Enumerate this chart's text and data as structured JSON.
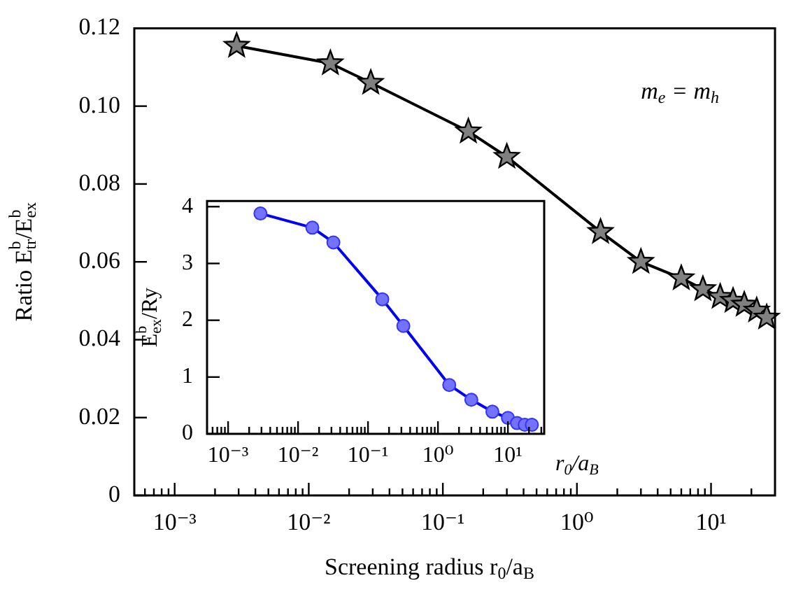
{
  "chart_data": [
    {
      "type": "line",
      "xlabel": "Screening radius r$_{0}$/a$_{B}$",
      "ylabel": "Ratio E$^{b}$$_{tr}$/E$^{b}$$_{ex}$",
      "annotations": [
        "m$_{e}$ = m$_{h}$"
      ],
      "log": "x",
      "marker": "star",
      "x": [
        0.0029,
        0.0145,
        0.029,
        0.155,
        0.3,
        1.5,
        3.0,
        6.0,
        8.7,
        11.7,
        14.6,
        17.7,
        21.9,
        26
      ],
      "series": [
        {
          "color": "#000000",
          "values": [
            0.1155,
            0.111,
            0.106,
            0.0935,
            0.087,
            0.0677,
            0.06,
            0.0558,
            0.053,
            0.051,
            0.05,
            0.049,
            0.0475,
            0.0457
          ]
        }
      ],
      "xlim": [
        0.0005,
        30
      ],
      "ylim": [
        0,
        0.12
      ],
      "xticks": [
        {
          "value": 0.0006,
          "label": null
        },
        {
          "value": 0.0007,
          "label": null
        },
        {
          "value": 0.0008,
          "label": null
        },
        {
          "value": 0.0009,
          "label": null
        },
        {
          "value": 0.001,
          "label": "10⁻³"
        },
        {
          "value": 0.002,
          "label": null
        },
        {
          "value": 0.003,
          "label": null
        },
        {
          "value": 0.004,
          "label": null
        },
        {
          "value": 0.005,
          "label": null
        },
        {
          "value": 0.006,
          "label": null
        },
        {
          "value": 0.007,
          "label": null
        },
        {
          "value": 0.008,
          "label": null
        },
        {
          "value": 0.009,
          "label": null
        },
        {
          "value": 0.01,
          "label": "10⁻²"
        },
        {
          "value": 0.02,
          "label": null
        },
        {
          "value": 0.03,
          "label": null
        },
        {
          "value": 0.04,
          "label": null
        },
        {
          "value": 0.05,
          "label": null
        },
        {
          "value": 0.06,
          "label": null
        },
        {
          "value": 0.07,
          "label": null
        },
        {
          "value": 0.08,
          "label": null
        },
        {
          "value": 0.09,
          "label": null
        },
        {
          "value": 0.1,
          "label": "10⁻¹"
        },
        {
          "value": 0.2,
          "label": null
        },
        {
          "value": 0.3,
          "label": null
        },
        {
          "value": 0.4,
          "label": null
        },
        {
          "value": 0.5,
          "label": null
        },
        {
          "value": 0.6,
          "label": null
        },
        {
          "value": 0.7,
          "label": null
        },
        {
          "value": 0.8,
          "label": null
        },
        {
          "value": 0.9,
          "label": null
        },
        {
          "value": 1,
          "label": "10⁰"
        },
        {
          "value": 2,
          "label": null
        },
        {
          "value": 3,
          "label": null
        },
        {
          "value": 4,
          "label": null
        },
        {
          "value": 5,
          "label": null
        },
        {
          "value": 6,
          "label": null
        },
        {
          "value": 7,
          "label": null
        },
        {
          "value": 8,
          "label": null
        },
        {
          "value": 9,
          "label": null
        },
        {
          "value": 10,
          "label": "10¹"
        },
        {
          "value": 20,
          "label": null
        }
      ],
      "yticks": [
        0,
        0.02,
        0.04,
        0.06,
        0.08,
        {
          "value": 0.1,
          "label": "0.10"
        },
        0.12
      ]
    },
    {
      "type": "line",
      "xlabel": "r$_{0}$/a$_{B}$",
      "ylabel": "E$^{b}$$_{ex}$/Ry",
      "log": "x",
      "marker": "circle",
      "x": [
        0.0029,
        0.016,
        0.032,
        0.16,
        0.32,
        1.45,
        3.0,
        6.0,
        10,
        13.5,
        17.4,
        22
      ],
      "series": [
        {
          "color": "#0000ff",
          "values": [
            3.88,
            3.63,
            3.37,
            2.37,
            1.9,
            0.86,
            0.6,
            0.39,
            0.28,
            0.19,
            0.16,
            0.16
          ]
        }
      ],
      "xlim": [
        0.0005,
        33
      ],
      "ylim": [
        0,
        4.1
      ],
      "xticks": [
        {
          "value": 0.0006,
          "label": null
        },
        {
          "value": 0.0007,
          "label": null
        },
        {
          "value": 0.0008,
          "label": null
        },
        {
          "value": 0.0009,
          "label": null
        },
        {
          "value": 0.001,
          "label": "10⁻³"
        },
        {
          "value": 0.002,
          "label": null
        },
        {
          "value": 0.003,
          "label": null
        },
        {
          "value": 0.004,
          "label": null
        },
        {
          "value": 0.005,
          "label": null
        },
        {
          "value": 0.006,
          "label": null
        },
        {
          "value": 0.007,
          "label": null
        },
        {
          "value": 0.008,
          "label": null
        },
        {
          "value": 0.009,
          "label": null
        },
        {
          "value": 0.01,
          "label": "10⁻²"
        },
        {
          "value": 0.02,
          "label": null
        },
        {
          "value": 0.03,
          "label": null
        },
        {
          "value": 0.04,
          "label": null
        },
        {
          "value": 0.05,
          "label": null
        },
        {
          "value": 0.06,
          "label": null
        },
        {
          "value": 0.07,
          "label": null
        },
        {
          "value": 0.08,
          "label": null
        },
        {
          "value": 0.09,
          "label": null
        },
        {
          "value": 0.1,
          "label": "10⁻¹"
        },
        {
          "value": 0.2,
          "label": null
        },
        {
          "value": 0.3,
          "label": null
        },
        {
          "value": 0.4,
          "label": null
        },
        {
          "value": 0.5,
          "label": null
        },
        {
          "value": 0.6,
          "label": null
        },
        {
          "value": 0.7,
          "label": null
        },
        {
          "value": 0.8,
          "label": null
        },
        {
          "value": 0.9,
          "label": null
        },
        {
          "value": 1,
          "label": "10⁰"
        },
        {
          "value": 2,
          "label": null
        },
        {
          "value": 3,
          "label": null
        },
        {
          "value": 4,
          "label": null
        },
        {
          "value": 5,
          "label": null
        },
        {
          "value": 6,
          "label": null
        },
        {
          "value": 7,
          "label": null
        },
        {
          "value": 8,
          "label": null
        },
        {
          "value": 9,
          "label": null
        },
        {
          "value": 10,
          "label": "10¹"
        },
        {
          "value": 20,
          "label": null
        },
        {
          "value": 30,
          "label": null
        }
      ],
      "yticks": [
        0,
        1,
        2,
        3,
        4
      ]
    }
  ]
}
